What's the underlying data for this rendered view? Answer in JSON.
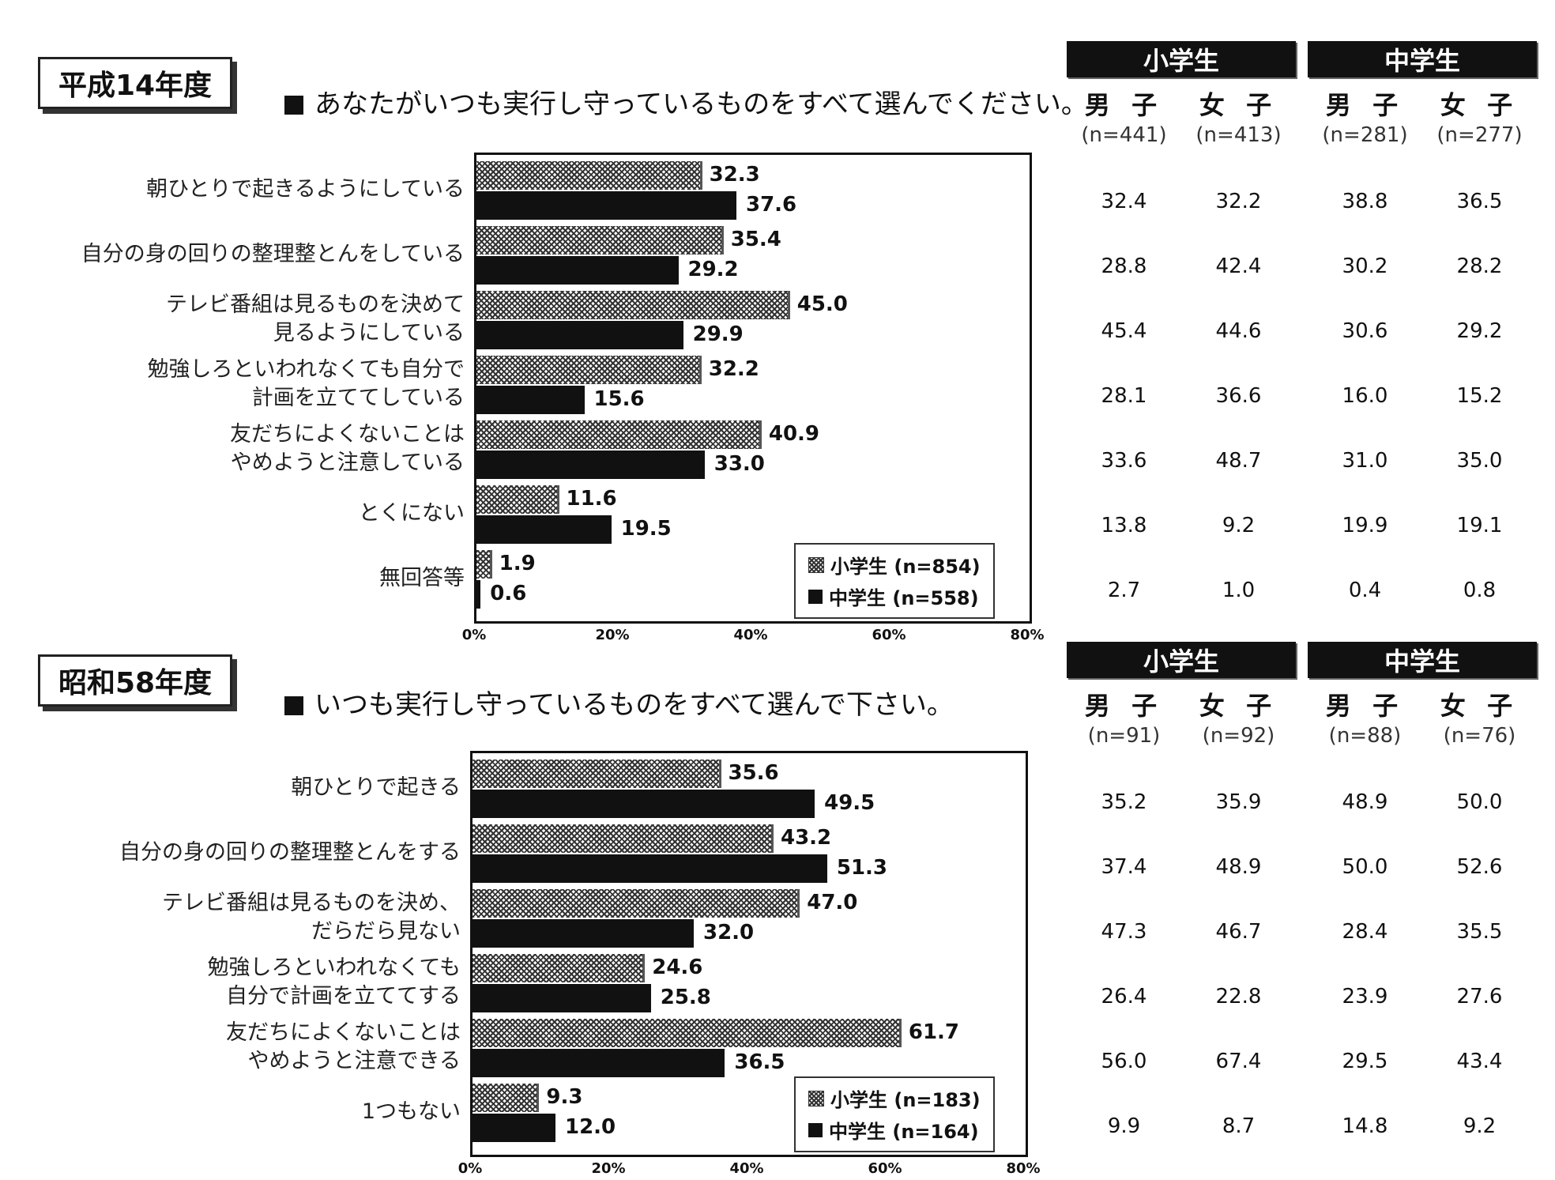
{
  "sections": [
    {
      "year_label": "平成14年度",
      "question": "あなたがいつも実行し守っているものをすべて選んでください。",
      "table": {
        "groups": [
          "小学生",
          "中学生"
        ],
        "columns": [
          {
            "label": "男 子",
            "n": "(n=441)"
          },
          {
            "label": "女 子",
            "n": "(n=413)"
          },
          {
            "label": "男 子",
            "n": "(n=281)"
          },
          {
            "label": "女 子",
            "n": "(n=277)"
          }
        ],
        "rows": [
          [
            "32.4",
            "32.2",
            "38.8",
            "36.5"
          ],
          [
            "28.8",
            "42.4",
            "30.2",
            "28.2"
          ],
          [
            "45.4",
            "44.6",
            "30.6",
            "29.2"
          ],
          [
            "28.1",
            "36.6",
            "16.0",
            "15.2"
          ],
          [
            "33.6",
            "48.7",
            "31.0",
            "35.0"
          ],
          [
            "13.8",
            "9.2",
            "19.9",
            "19.1"
          ],
          [
            "2.7",
            "1.0",
            "0.4",
            "0.8"
          ]
        ]
      }
    },
    {
      "year_label": "昭和58年度",
      "question": "いつも実行し守っているものをすべて選んで下さい。",
      "table": {
        "groups": [
          "小学生",
          "中学生"
        ],
        "columns": [
          {
            "label": "男 子",
            "n": "(n=91)"
          },
          {
            "label": "女 子",
            "n": "(n=92)"
          },
          {
            "label": "男 子",
            "n": "(n=88)"
          },
          {
            "label": "女 子",
            "n": "(n=76)"
          }
        ],
        "rows": [
          [
            "35.2",
            "35.9",
            "48.9",
            "50.0"
          ],
          [
            "37.4",
            "48.9",
            "50.0",
            "52.6"
          ],
          [
            "47.3",
            "46.7",
            "28.4",
            "35.5"
          ],
          [
            "26.4",
            "22.8",
            "23.9",
            "27.6"
          ],
          [
            "56.0",
            "67.4",
            "29.5",
            "43.4"
          ],
          [
            "9.9",
            "8.7",
            "14.8",
            "9.2"
          ]
        ]
      }
    }
  ],
  "chart_data": [
    {
      "type": "bar",
      "orientation": "horizontal",
      "categories": [
        [
          "朝ひとりで起きるようにしている"
        ],
        [
          "自分の身の回りの整理整とんをしている"
        ],
        [
          "テレビ番組は見るものを決めて",
          "見るようにしている"
        ],
        [
          "勉強しろといわれなくても自分で",
          "計画を立ててしている"
        ],
        [
          "友だちによくないことは",
          "やめようと注意している"
        ],
        [
          "とくにない"
        ],
        [
          "無回答等"
        ]
      ],
      "series": [
        {
          "name": "小学生 (n=854)",
          "values": [
            32.3,
            35.4,
            45.0,
            32.2,
            40.9,
            11.6,
            1.9
          ]
        },
        {
          "name": "中学生 (n=558)",
          "values": [
            37.6,
            29.2,
            29.9,
            15.6,
            33.0,
            19.5,
            0.6
          ]
        }
      ],
      "xlim": [
        0,
        80
      ],
      "xticks": [
        "0%",
        "20%",
        "40%",
        "60%",
        "80%"
      ],
      "legend_position": "bottom-right"
    },
    {
      "type": "bar",
      "orientation": "horizontal",
      "categories": [
        [
          "朝ひとりで起きる"
        ],
        [
          "自分の身の回りの整理整とんをする"
        ],
        [
          "テレビ番組は見るものを決め、",
          "だらだら見ない"
        ],
        [
          "勉強しろといわれなくても",
          "自分で計画を立ててする"
        ],
        [
          "友だちによくないことは",
          "やめようと注意できる"
        ],
        [
          "1つもない"
        ]
      ],
      "series": [
        {
          "name": "小学生 (n=183)",
          "values": [
            35.6,
            43.2,
            47.0,
            24.6,
            61.7,
            9.3
          ]
        },
        {
          "name": "中学生 (n=164)",
          "values": [
            49.5,
            51.3,
            32.0,
            25.8,
            36.5,
            12.0
          ]
        }
      ],
      "xlim": [
        0,
        80
      ],
      "xticks": [
        "0%",
        "20%",
        "40%",
        "60%",
        "80%"
      ],
      "legend_position": "bottom-right"
    }
  ]
}
